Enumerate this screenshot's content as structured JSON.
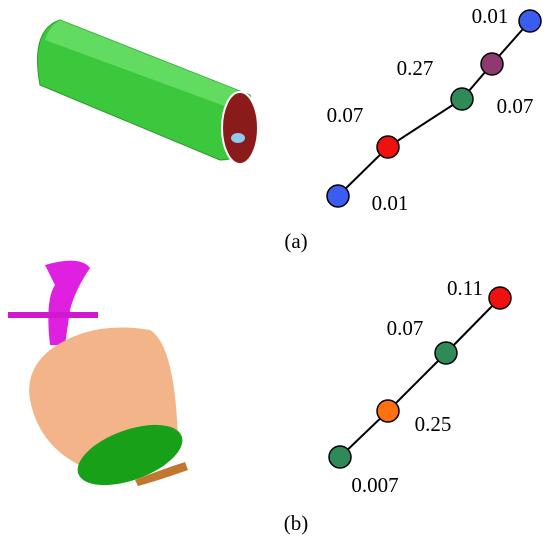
{
  "panels": [
    {
      "caption": "(a)",
      "nodes": [
        {
          "label": "0.01",
          "color": "#3a5cf0"
        },
        {
          "label": "0.07",
          "color": "#f01010"
        },
        {
          "label": "0.27",
          "color": "#2e8b57"
        },
        {
          "label": "0.07",
          "color": "#8e3a6e"
        },
        {
          "label": "0.01",
          "color": "#3a5cf0"
        }
      ]
    },
    {
      "caption": "(b)",
      "nodes": [
        {
          "label": "0.007",
          "color": "#2e8b57"
        },
        {
          "label": "0.25",
          "color": "#ff7010"
        },
        {
          "label": "0.07",
          "color": "#2e8b57"
        },
        {
          "label": "0.11",
          "color": "#f01010"
        }
      ]
    }
  ]
}
